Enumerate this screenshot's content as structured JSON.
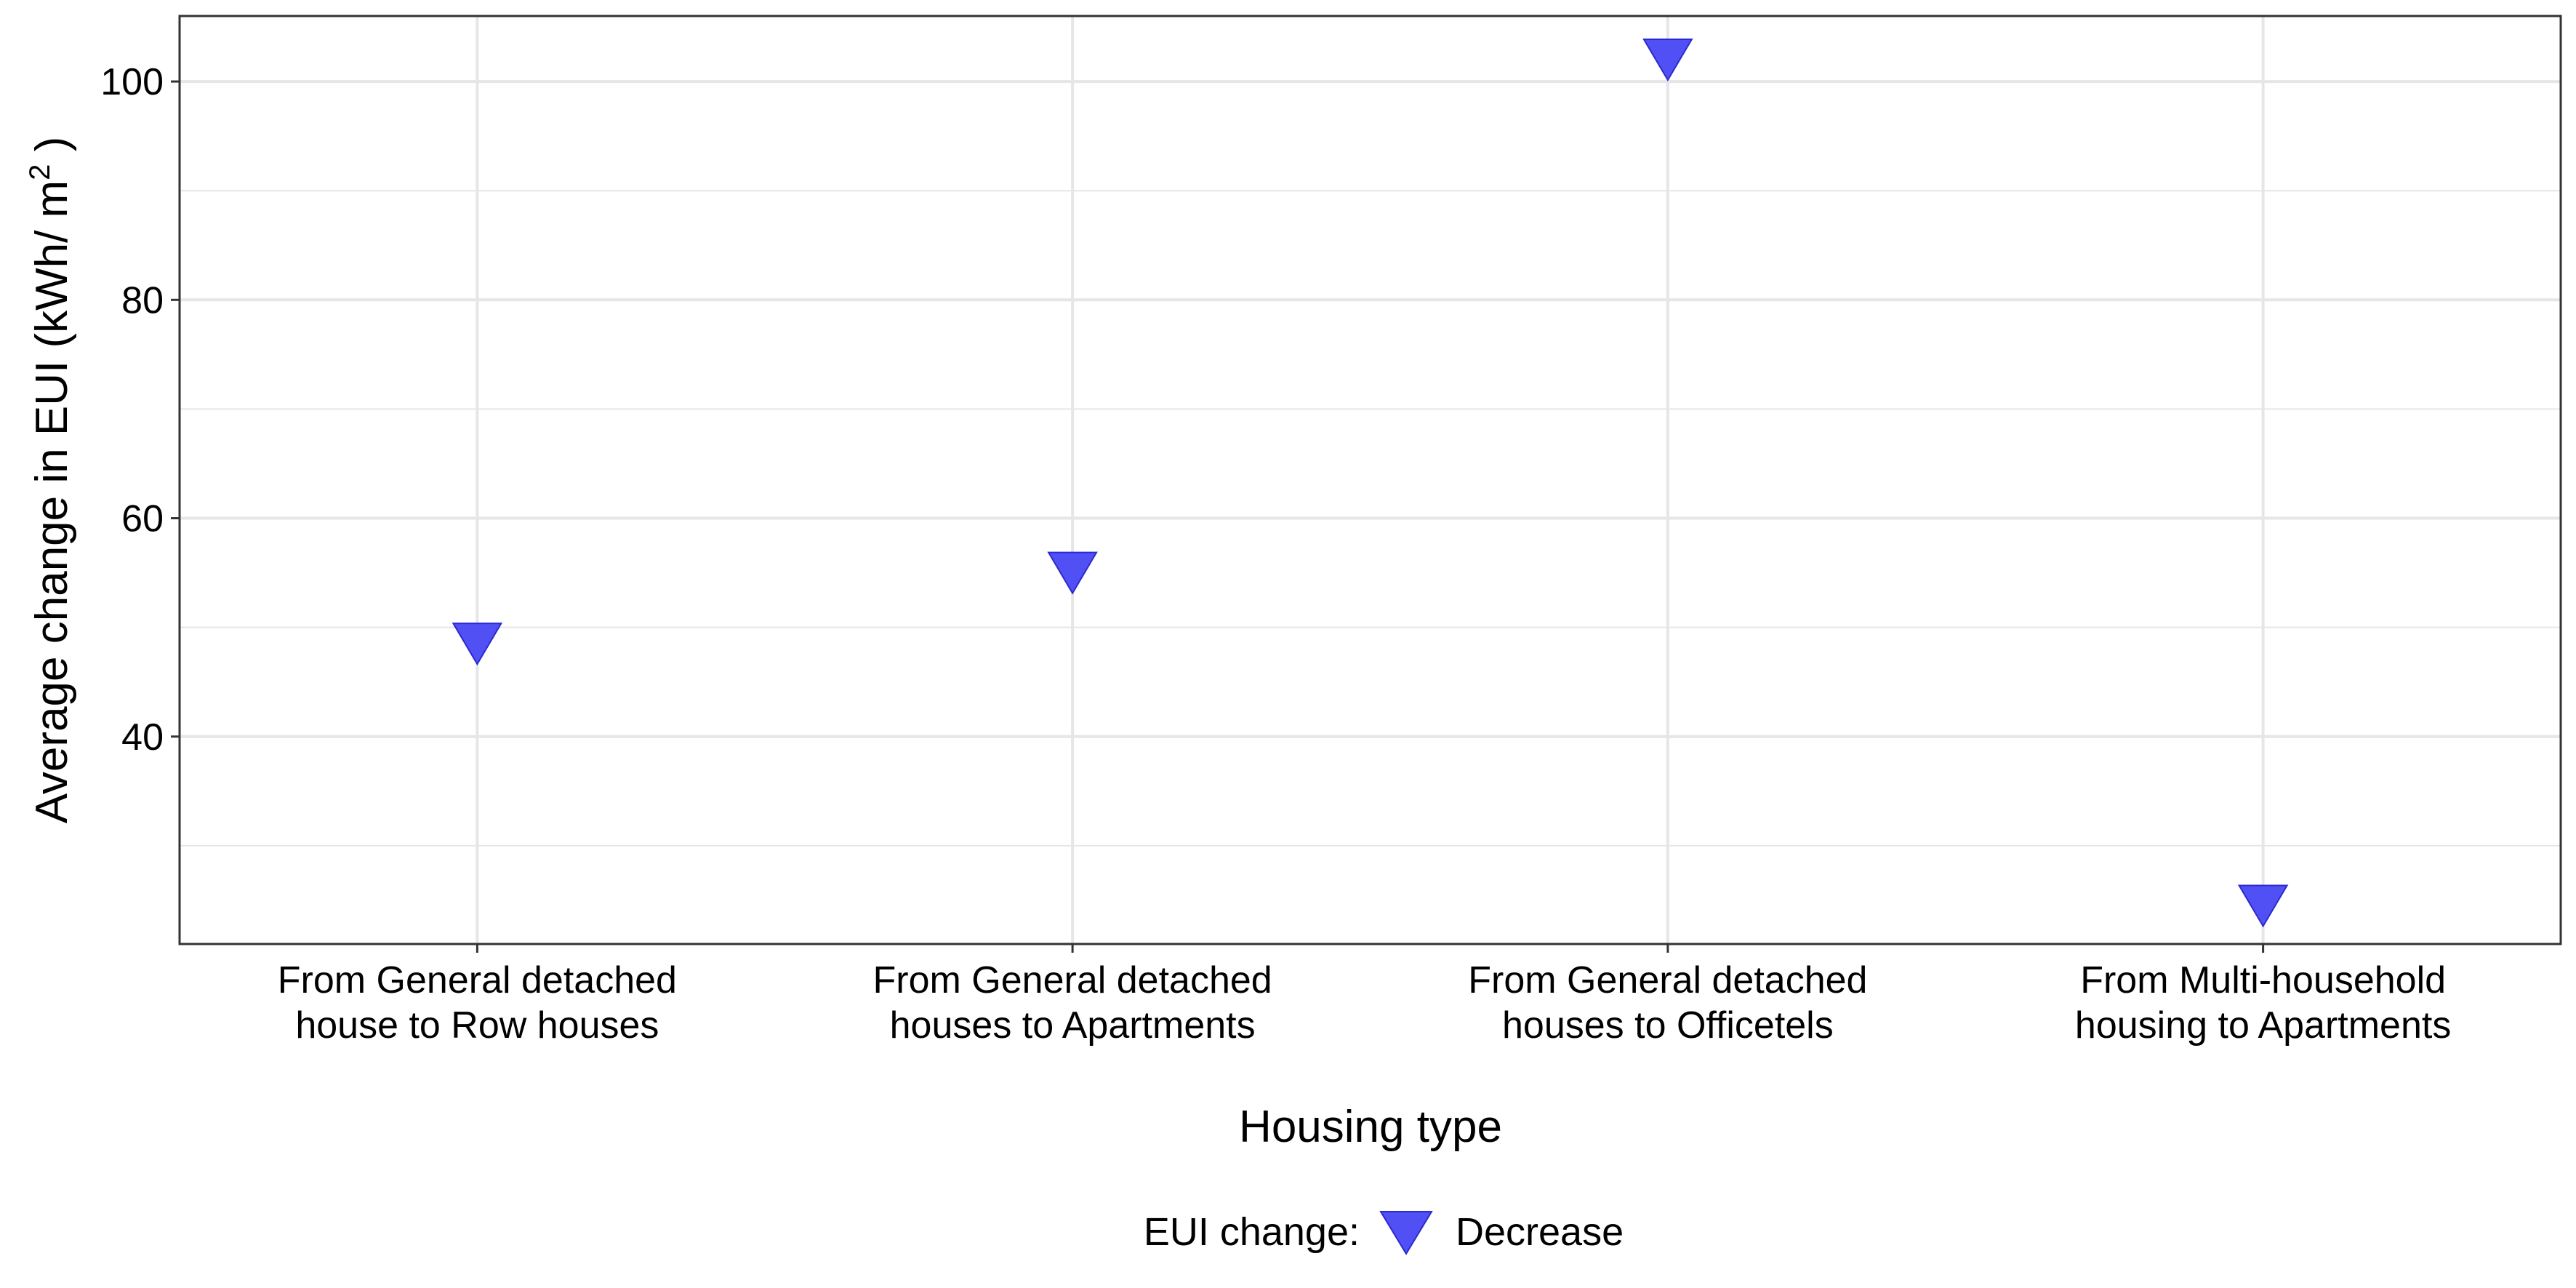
{
  "chart_data": {
    "type": "scatter",
    "categories": [
      [
        "From General detached",
        "house to Row houses"
      ],
      [
        "From General detached",
        "houses to Apartments"
      ],
      [
        "From General detached",
        "houses to Officetels"
      ],
      [
        "From Multi-household",
        "housing to Apartments"
      ]
    ],
    "series": [
      {
        "name": "Decrease",
        "values": [
          48.5,
          55.0,
          102.0,
          24.5
        ]
      }
    ],
    "xlabel": "Housing type",
    "ylabel": "Average change in EUI (kWh/ m",
    "ylabel_superscript": "2",
    "ylabel_suffix": " )",
    "ylim": [
      21,
      106
    ],
    "yticks": [
      40,
      60,
      80,
      100
    ],
    "yticks_minor": [
      30,
      50,
      70,
      90
    ],
    "grid": true,
    "legend": {
      "title": "EUI change:",
      "position": "bottom",
      "entries": [
        "Decrease"
      ]
    },
    "colors": {
      "marker_fill": "#5050f5",
      "marker_stroke": "#2a2ad0",
      "grid": "#e6e6e6",
      "panel_border": "#333333"
    }
  }
}
